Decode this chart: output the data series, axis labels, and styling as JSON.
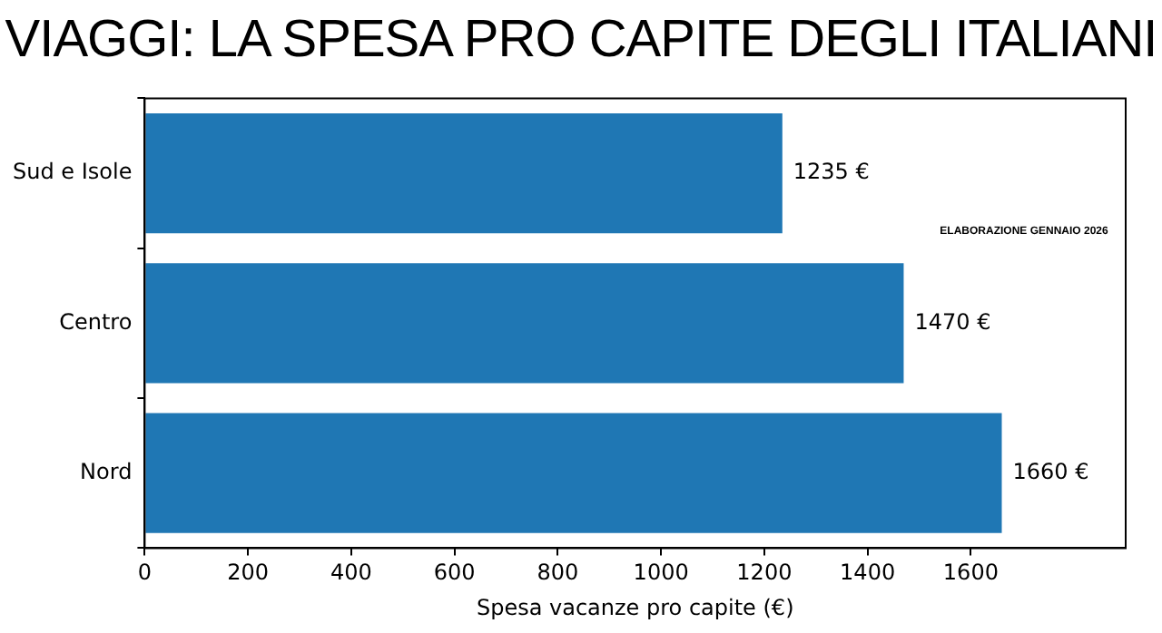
{
  "chart_data": {
    "type": "bar",
    "orientation": "horizontal",
    "title": "VIAGGI: LA SPESA PRO CAPITE DEGLI ITALIANI",
    "xlabel": "Spesa vacanze pro capite (€)",
    "categories": [
      "Sud e Isole",
      "Centro",
      "Nord"
    ],
    "values": [
      1235,
      1470,
      1660
    ],
    "color": "#1f77b4",
    "value_labels": [
      "1235 €",
      "1470 €",
      "1660 €"
    ],
    "xlim": [
      0,
      1900
    ],
    "xticks": [
      0,
      200,
      400,
      600,
      800,
      1000,
      1200,
      1400,
      1600
    ],
    "grid": false,
    "legend": false,
    "annotations": [
      "ELABORAZIONE GENNAIO 2026"
    ]
  }
}
